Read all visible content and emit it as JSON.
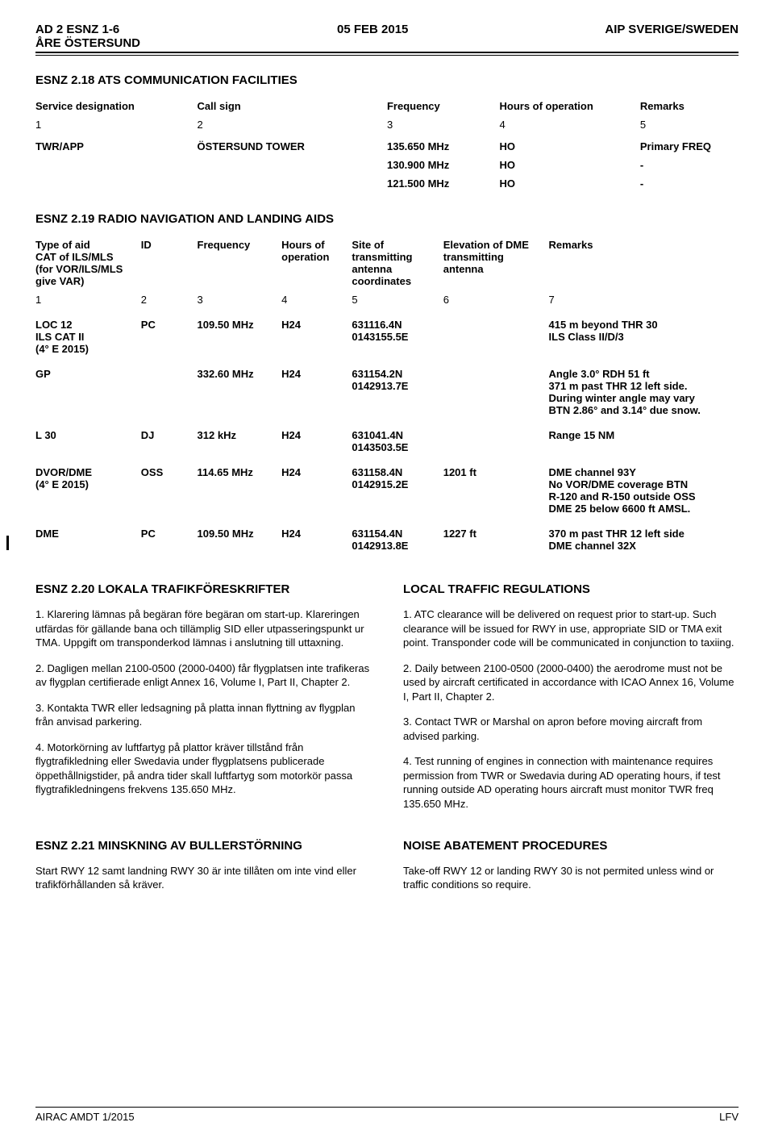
{
  "header": {
    "left": "AD 2 ESNZ 1-6\nÅRE ÖSTERSUND",
    "center": "05 FEB 2015",
    "right": "AIP SVERIGE/SWEDEN"
  },
  "section218": {
    "title": "ESNZ 2.18  ATS COMMUNICATION FACILITIES",
    "columns": [
      "Service designation",
      "Call sign",
      "Frequency",
      "Hours of operation",
      "Remarks"
    ],
    "colnums": [
      "1",
      "2",
      "3",
      "4",
      "5"
    ],
    "rows": [
      [
        "TWR/APP",
        "ÖSTERSUND TOWER",
        "135.650 MHz",
        "HO",
        "Primary FREQ"
      ],
      [
        "",
        "",
        "130.900 MHz",
        "HO",
        "-"
      ],
      [
        "",
        "",
        "121.500 MHz",
        "HO",
        "-"
      ]
    ]
  },
  "section219": {
    "title": "ESNZ 2.19  RADIO NAVIGATION AND LANDING AIDS",
    "columns": [
      "Type of aid\nCAT of ILS/MLS\n(for VOR/ILS/MLS\ngive VAR)",
      "ID",
      "Frequency",
      "Hours of\noperation",
      "Site of\ntransmitting\nantenna\ncoordinates",
      "Elevation of DME\ntransmitting\nantenna",
      "Remarks"
    ],
    "colnums": [
      "1",
      "2",
      "3",
      "4",
      "5",
      "6",
      "7"
    ],
    "rows": [
      [
        "LOC 12\nILS CAT II\n(4° E 2015)",
        "PC",
        "109.50 MHz",
        "H24",
        "631116.4N\n0143155.5E",
        "",
        "415 m beyond THR 30\nILS Class II/D/3"
      ],
      [
        "GP",
        "",
        "332.60 MHz",
        "H24",
        "631154.2N\n0142913.7E",
        "",
        "Angle 3.0° RDH 51 ft\n371 m past THR 12 left side.\nDuring winter angle may vary\nBTN 2.86° and 3.14° due snow."
      ],
      [
        "L 30",
        "DJ",
        "312 kHz",
        "H24",
        "631041.4N\n0143503.5E",
        "",
        "Range 15 NM"
      ],
      [
        "DVOR/DME\n(4° E 2015)",
        "OSS",
        "114.65 MHz",
        "H24",
        "631158.4N\n0142915.2E",
        "1201 ft",
        "DME channel 93Y\nNo VOR/DME coverage BTN\nR-120 and R-150 outside OSS\nDME 25 below 6600 ft AMSL."
      ],
      [
        "DME",
        "PC",
        "109.50 MHz",
        "H24",
        "631154.4N\n0142913.8E",
        "1227 ft",
        "370 m past THR 12 left side\nDME channel 32X"
      ]
    ]
  },
  "section220": {
    "left_title": "ESNZ 2.20  LOKALA TRAFIKFÖRESKRIFTER",
    "right_title": "LOCAL TRAFFIC REGULATIONS",
    "left_paras": [
      "1.        Klarering lämnas på begäran före begäran om start-up. Klareringen utfärdas för gällande bana och tillämplig SID eller utpasseringspunkt ur TMA. Uppgift om transponderkod lämnas i anslutning till uttaxning.",
      "2.        Dagligen mellan 2100-0500 (2000-0400) får flygplatsen inte trafikeras av flygplan certifierade enligt Annex 16, Volume I, Part II, Chapter 2.",
      "3.        Kontakta TWR eller ledsagning på platta innan flyttning av flygplan från anvisad parkering.",
      "4.        Motorkörning av luftfartyg på plattor kräver tillstånd från flygtrafikledning eller Swedavia under flygplatsens publicerade öppethållnigstider, på andra tider skall luftfartyg som motorkör passa flygtrafikledningens frekvens 135.650 MHz."
    ],
    "right_paras": [
      "1.        ATC clearance will be delivered on request prior to start-up. Such clearance will be issued for RWY in use, appropriate SID or TMA exit point. Transponder code will be communicated in conjunction to taxiing.",
      "2.        Daily between 2100-0500 (2000-0400) the aerodrome must not be used by aircraft certificated in accordance with ICAO Annex 16, Volume I, Part II, Chapter 2.",
      "3.        Contact TWR or Marshal on apron before moving aircraft from advised parking.",
      "4.        Test running of engines in connection with maintenance requires permission from TWR or Swedavia during AD operating hours, if test running outside AD operating hours aircraft must monitor TWR freq 135.650 MHz."
    ]
  },
  "section221": {
    "left_title": "ESNZ 2.21  MINSKNING AV BULLERSTÖRNING",
    "right_title": "NOISE ABATEMENT PROCEDURES",
    "left_paras": [
      "Start RWY 12 samt landning RWY 30 är inte tillåten om inte vind eller trafikförhållanden så kräver."
    ],
    "right_paras": [
      "Take-off RWY 12 or landing RWY 30 is not permited unless wind or traffic conditions so require."
    ]
  },
  "footer": {
    "left": "AIRAC AMDT 1/2015",
    "right": "LFV"
  }
}
